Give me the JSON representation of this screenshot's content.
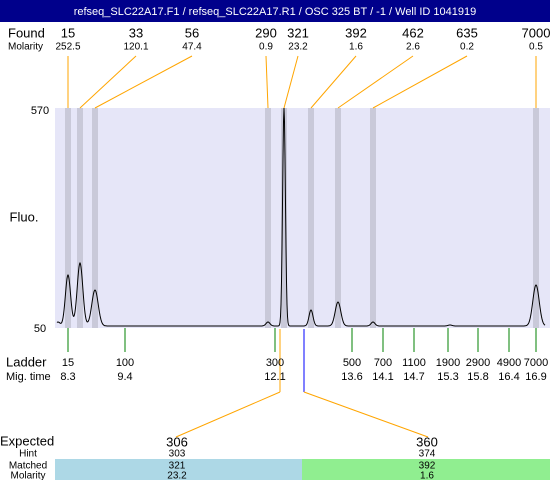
{
  "title": "refseq_SLC22A17.F1 / refseq_SLC22A17.R1 / OSC 325 BT / -1 / Well ID 1041919",
  "found": {
    "label": "Found",
    "sizes": [
      "15",
      "33",
      "56",
      "290",
      "321",
      "392",
      "462",
      "635",
      "7000"
    ],
    "molarity_label": "Molarity",
    "molarity": [
      "252.5",
      "120.1",
      "47.4",
      "0.9",
      "23.2",
      "1.6",
      "2.6",
      "0.2",
      "0.5"
    ]
  },
  "plot": {
    "y_label": "Fluo.",
    "y_max": "570",
    "y_min": "50"
  },
  "ladder": {
    "label": "Ladder",
    "sizes": [
      "15",
      "100",
      "300",
      "500",
      "700",
      "1100",
      "1900",
      "2900",
      "4900",
      "7000"
    ],
    "mig_time_label": "Mig. time",
    "mig_times": [
      "8.3",
      "9.4",
      "12.1",
      "13.6",
      "14.1",
      "14.7",
      "15.3",
      "15.8",
      "16.4",
      "16.9"
    ]
  },
  "expected": {
    "label": "Expected",
    "values": [
      "306",
      "360"
    ],
    "hint_label": "Hint",
    "hints": [
      "303",
      "374"
    ],
    "matched_label": "Matched",
    "matched": [
      "321",
      "392"
    ],
    "molarity_label": "Molarity",
    "molarity": [
      "23.2",
      "1.6"
    ]
  }
}
